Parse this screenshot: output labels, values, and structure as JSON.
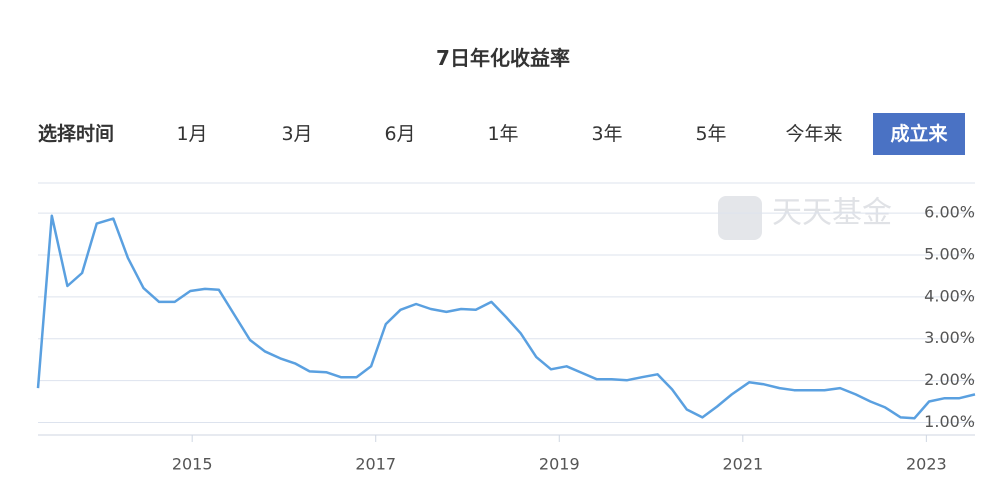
{
  "controls": {
    "label": "选择时间",
    "tabs": [
      "1月",
      "3月",
      "6月",
      "1年",
      "3年",
      "5年",
      "今年来",
      "成立来"
    ]
  },
  "watermark": "天天基金",
  "chart_data": {
    "type": "line",
    "title": "7日年化收益率",
    "color": "#5aa0e0",
    "grid": true,
    "x": [
      2013.32,
      2013.47,
      2013.64,
      2013.8,
      2013.96,
      2014.14,
      2014.3,
      2014.47,
      2014.64,
      2014.81,
      2014.98,
      2015.14,
      2015.29,
      2015.46,
      2015.63,
      2015.79,
      2015.96,
      2016.12,
      2016.28,
      2016.46,
      2016.62,
      2016.79,
      2016.95,
      2017.11,
      2017.27,
      2017.44,
      2017.6,
      2017.77,
      2017.93,
      2018.09,
      2018.26,
      2018.42,
      2018.58,
      2018.75,
      2018.91,
      2019.08,
      2019.25,
      2019.41,
      2019.57,
      2019.74,
      2019.9,
      2020.07,
      2020.23,
      2020.39,
      2020.56,
      2020.72,
      2020.88,
      2021.07,
      2021.23,
      2021.4,
      2021.56,
      2021.72,
      2021.89,
      2022.06,
      2022.23,
      2022.39,
      2022.55,
      2022.72,
      2022.87,
      2023.03,
      2023.2,
      2023.36,
      2023.53
    ],
    "values": [
      1.82,
      5.94,
      4.26,
      4.57,
      5.75,
      5.87,
      4.93,
      4.21,
      3.88,
      3.88,
      4.14,
      4.19,
      4.17,
      3.57,
      2.97,
      2.7,
      2.53,
      2.41,
      2.22,
      2.2,
      2.08,
      2.08,
      2.34,
      3.35,
      3.69,
      3.83,
      3.71,
      3.64,
      3.71,
      3.69,
      3.88,
      3.52,
      3.13,
      2.56,
      2.27,
      2.34,
      2.18,
      2.03,
      2.03,
      2.01,
      2.08,
      2.15,
      1.79,
      1.31,
      1.12,
      1.38,
      1.67,
      1.96,
      1.91,
      1.82,
      1.77,
      1.77,
      1.77,
      1.82,
      1.67,
      1.5,
      1.36,
      1.12,
      1.1,
      1.5,
      1.58,
      1.58,
      1.67
    ],
    "xlim": [
      2013.32,
      2023.53
    ],
    "xticks": [
      2015,
      2017,
      2019,
      2021,
      2023
    ],
    "ylim": [
      0.7,
      6.72
    ],
    "yticks": [
      {
        "value": 1,
        "label": "1.00%"
      },
      {
        "value": 2,
        "label": "2.00%"
      },
      {
        "value": 3,
        "label": "3.00%"
      },
      {
        "value": 4,
        "label": "4.00%"
      },
      {
        "value": 5,
        "label": "5.00%"
      },
      {
        "value": 6,
        "label": "6.00%"
      }
    ]
  }
}
